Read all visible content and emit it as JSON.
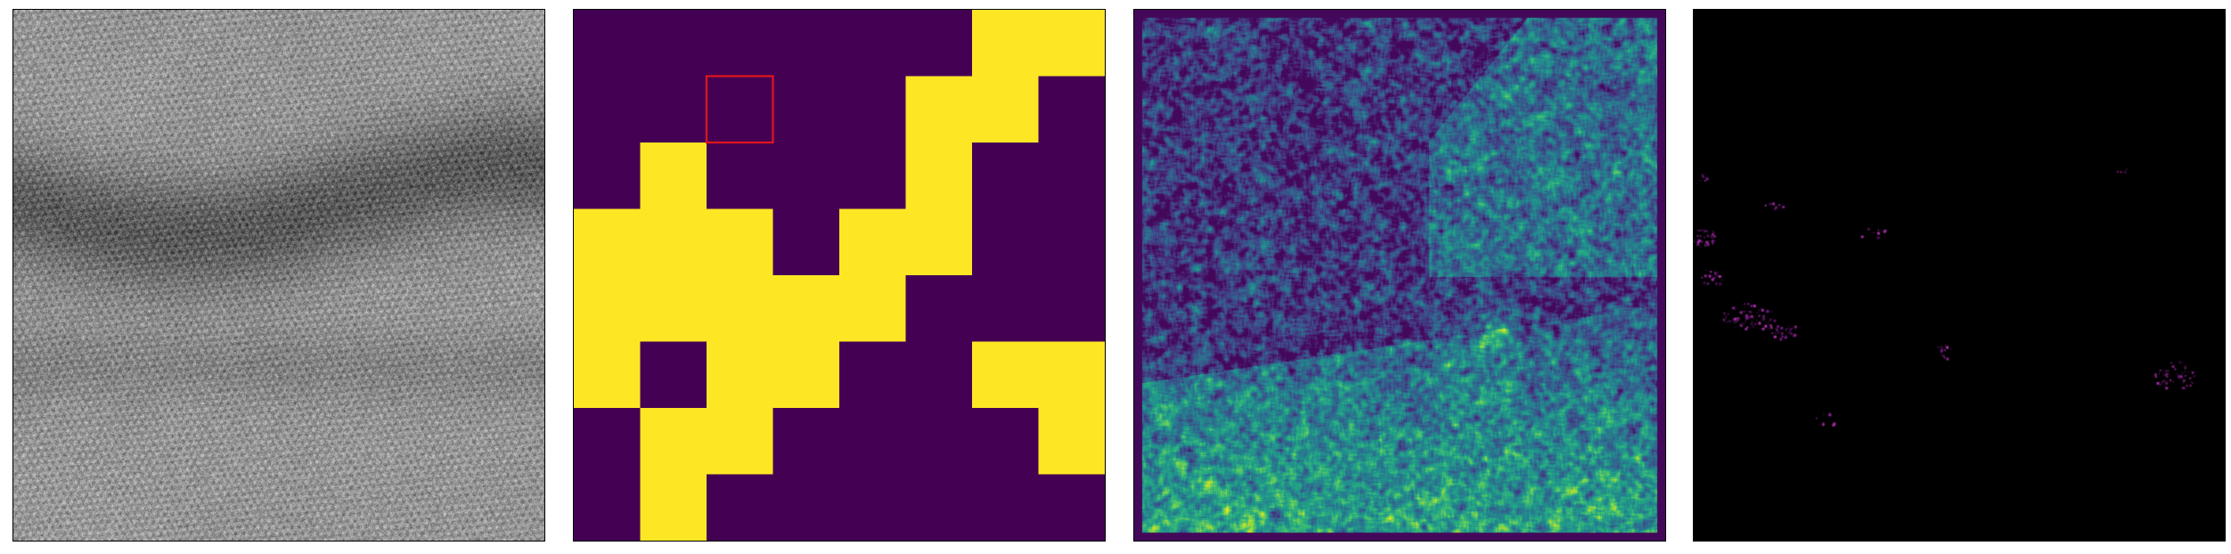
{
  "figure": {
    "panels": [
      {
        "name": "hrtem-micrograph",
        "colormap": "gray"
      },
      {
        "name": "binary-segmentation-grid",
        "colormap": "viridis",
        "grid_size": [
          8,
          8
        ],
        "cells": [
          [
            0,
            0,
            0,
            0,
            0,
            0,
            1,
            1
          ],
          [
            0,
            0,
            0,
            0,
            0,
            1,
            1,
            0
          ],
          [
            0,
            1,
            0,
            0,
            0,
            1,
            0,
            0
          ],
          [
            1,
            1,
            1,
            0,
            1,
            1,
            0,
            0
          ],
          [
            1,
            1,
            1,
            1,
            1,
            0,
            0,
            0
          ],
          [
            1,
            0,
            1,
            1,
            0,
            0,
            1,
            1
          ],
          [
            0,
            1,
            1,
            0,
            0,
            0,
            0,
            1
          ],
          [
            0,
            1,
            0,
            0,
            0,
            0,
            0,
            0
          ]
        ],
        "highlight_cell": {
          "row": 1,
          "col": 2,
          "color": "#e0151c"
        },
        "colors": {
          "off": "#440154",
          "on": "#fde725"
        }
      },
      {
        "name": "feature-activation-map",
        "colormap": "viridis"
      },
      {
        "name": "sparse-residual-map",
        "colormap": "magma",
        "background": "#000000",
        "accent": "#b02fb0"
      }
    ]
  }
}
